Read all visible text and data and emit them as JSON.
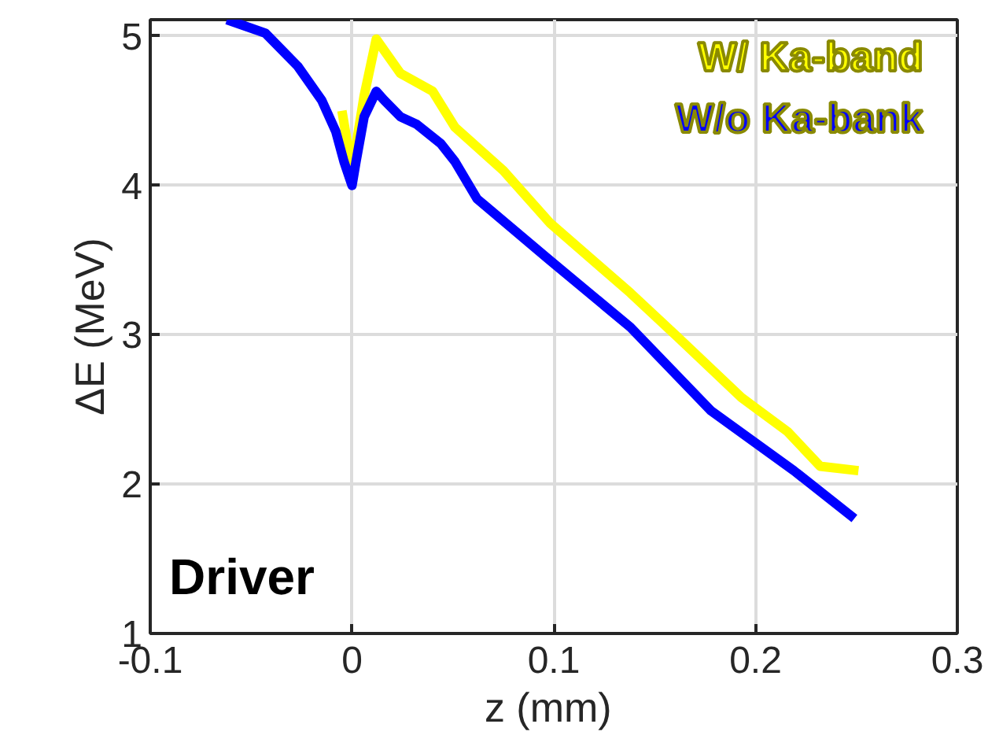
{
  "chart_data": {
    "type": "line",
    "xlabel": "z  (mm)",
    "ylabel": "ΔE (MeV)",
    "xlim": [
      -0.1,
      0.3
    ],
    "ylim": [
      1,
      5.11
    ],
    "xticks": [
      -0.1,
      0,
      0.1,
      0.2,
      0.3
    ],
    "yticks": [
      1,
      2,
      3,
      4,
      5
    ],
    "grid": true,
    "legend": "top right",
    "marker": "none",
    "line_style": "solid",
    "annotations": [
      "Driver"
    ],
    "series": [
      {
        "name": "W/ Ka-band",
        "color": "#ffff00",
        "x": [
          -0.005,
          0,
          0.006,
          0.012,
          0.024,
          0.04,
          0.051,
          0.075,
          0.098,
          0.138,
          0.161,
          0.193,
          0.216,
          0.232,
          0.251
        ],
        "values": [
          4.5,
          4.1,
          4.6,
          4.98,
          4.75,
          4.63,
          4.39,
          4.1,
          3.75,
          3.28,
          2.99,
          2.58,
          2.35,
          2.12,
          2.09
        ]
      },
      {
        "name": "W/o Ka-bank",
        "color": "#0000ff",
        "x": [
          -0.062,
          -0.043,
          -0.027,
          -0.015,
          -0.008,
          -0.004,
          0,
          0.002,
          0.006,
          0.012,
          0.016,
          0.024,
          0.032,
          0.044,
          0.051,
          0.062,
          0.098,
          0.138,
          0.178,
          0.219,
          0.249
        ],
        "values": [
          5.11,
          5.02,
          4.8,
          4.57,
          4.36,
          4.16,
          4.0,
          4.16,
          4.46,
          4.63,
          4.57,
          4.46,
          4.41,
          4.28,
          4.16,
          3.91,
          3.5,
          3.05,
          2.49,
          2.09,
          1.77
        ]
      }
    ]
  }
}
